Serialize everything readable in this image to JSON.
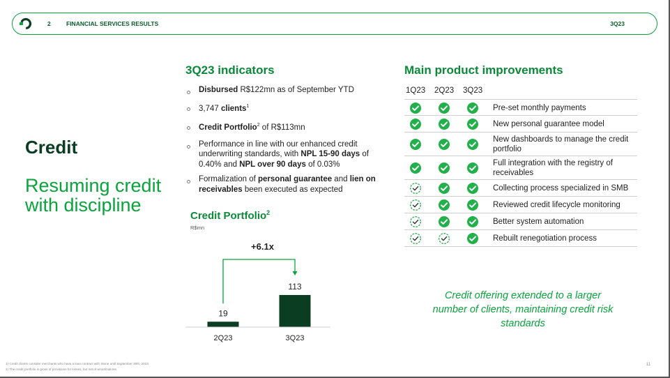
{
  "header": {
    "section_number": "2",
    "section_title": "FINANCIAL SERVICES RESULTS",
    "period": "3Q23"
  },
  "left": {
    "title": "Credit",
    "subtitle": "Resuming credit with discipline"
  },
  "indicators": {
    "title": "3Q23 indicators",
    "items": [
      {
        "parts": [
          {
            "b": "Disbursed"
          },
          {
            "t": " R$122mn as of September YTD"
          }
        ]
      },
      {
        "parts": [
          {
            "t": "3,747 "
          },
          {
            "b": "clients"
          },
          {
            "sup": "1"
          }
        ]
      },
      {
        "parts": [
          {
            "b": "Credit Portfolio"
          },
          {
            "sup": "2"
          },
          {
            "t": " of R$113mn"
          }
        ]
      },
      {
        "parts": [
          {
            "t": "Performance in line with our enhanced credit underwriting standards, with "
          },
          {
            "b": "NPL 15-90 days"
          },
          {
            "t": " of 0.40% and "
          },
          {
            "b": "NPL over 90 days"
          },
          {
            "t": " of 0.03%"
          }
        ]
      },
      {
        "parts": [
          {
            "t": "Formalization of "
          },
          {
            "b": "personal guarantee"
          },
          {
            "t": " and "
          },
          {
            "b": "lien on receivables"
          },
          {
            "t": " been executed as expected"
          }
        ]
      }
    ]
  },
  "credit_portfolio": {
    "title": "Credit Portfolio",
    "title_sup": "2",
    "unit": "R$mn",
    "growth_label": "+6.1x"
  },
  "chart_data": {
    "type": "bar",
    "categories": [
      "2Q23",
      "3Q23"
    ],
    "values": [
      19,
      113
    ],
    "title": "Credit Portfolio",
    "ylabel": "R$mn",
    "annotation": "+6.1x",
    "color": "#0b3d23"
  },
  "improvements": {
    "title": "Main product improvements",
    "columns": [
      "1Q23",
      "2Q23",
      "3Q23"
    ],
    "rows": [
      {
        "label": "Pre-set monthly payments",
        "status": [
          "done",
          "done",
          "done"
        ]
      },
      {
        "label": "New personal guarantee model",
        "status": [
          "done",
          "done",
          "done"
        ]
      },
      {
        "label": "New dashboards to manage the credit portfolio",
        "status": [
          "done",
          "done",
          "done"
        ]
      },
      {
        "label": "Full integration with the registry of receivables",
        "status": [
          "done",
          "done",
          "done"
        ]
      },
      {
        "label": "Collecting process specialized in SMB",
        "status": [
          "partial",
          "done",
          "done"
        ]
      },
      {
        "label": "Reviewed credit lifecycle monitoring",
        "status": [
          "partial",
          "done",
          "done"
        ]
      },
      {
        "label": "Better system automation",
        "status": [
          "partial",
          "done",
          "done"
        ]
      },
      {
        "label": "Rebuilt renegotiation process",
        "status": [
          "partial",
          "partial",
          "done"
        ]
      }
    ],
    "icons": {
      "done": "filled-check-circle-icon",
      "partial": "dashed-check-circle-icon"
    }
  },
  "quote": "Credit offering extended to a larger number of clients, maintaining credit risk standards",
  "footnotes": [
    "1) Credit clients consider merchants who have a loan contract with Stone until September 30th, 2023.",
    "2) The credit portfolio is gross of provisions for losses, but net of amortizations."
  ],
  "page_number": "11",
  "colors": {
    "dark_green": "#0b3d23",
    "brand_green": "#0aa33c",
    "check_green": "#22b04b"
  }
}
